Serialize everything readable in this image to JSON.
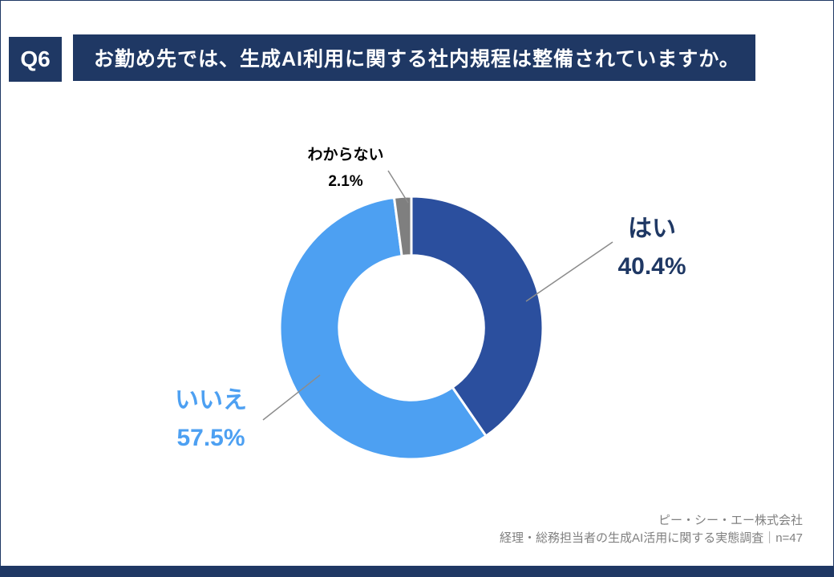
{
  "page": {
    "question_tag": "Q6",
    "title": "お勤め先では、生成AI利用に関する社内規程は整備されていますか。",
    "footer_line1": "ピー・シー・エー株式会社",
    "footer_line2": "経理・総務担当者の生成AI活用に関する実態調査｜n=47"
  },
  "chart_data": {
    "type": "pie",
    "subtype": "donut",
    "title": "",
    "categories": [
      "はい",
      "いいえ",
      "わからない"
    ],
    "values": [
      40.4,
      57.5,
      2.1
    ],
    "unit": "%",
    "colors": [
      "#2B4F9E",
      "#4DA0F2",
      "#7F7F7F"
    ],
    "start_angle_deg": 0,
    "direction": "clockwise",
    "inner_radius_ratio": 0.55,
    "legend_position": "none",
    "labels": [
      {
        "name": "はい",
        "value_text": "40.4%",
        "color": "#1F3864"
      },
      {
        "name": "いいえ",
        "value_text": "57.5%",
        "color": "#4DA0F2"
      },
      {
        "name": "わからない",
        "value_text": "2.1%",
        "color": "#000000"
      }
    ]
  },
  "colors": {
    "navy": "#1F3864",
    "segment_yes": "#2B4F9E",
    "segment_no": "#4DA0F2",
    "segment_unknown": "#7F7F7F",
    "footer_text": "#808080",
    "leader_line": "#8C8C8C"
  }
}
